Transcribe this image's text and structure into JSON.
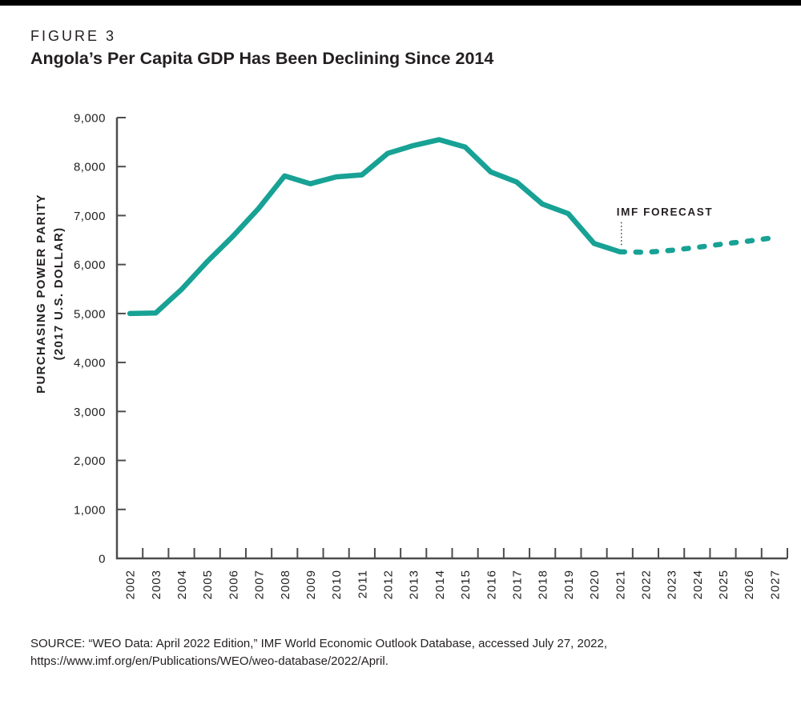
{
  "header": {
    "figure_label": "FIGURE 3",
    "title": "Angola’s Per Capita GDP Has Been Declining Since 2014"
  },
  "chart_data": {
    "type": "line",
    "title": "Angola’s Per Capita GDP Has Been Declining Since 2014",
    "ylabel_lines": [
      "PURCHASING POWER PARITY",
      "(2017 U.S. DOLLAR)"
    ],
    "xlabel": "",
    "xticklabels": [
      "2002",
      "2003",
      "2004",
      "2005",
      "2006",
      "2007",
      "2008",
      "2009",
      "2010",
      "2011",
      "2012",
      "2013",
      "2014",
      "2015",
      "2016",
      "2017",
      "2018",
      "2019",
      "2020",
      "2021",
      "2022",
      "2023",
      "2024",
      "2025",
      "2026",
      "2027"
    ],
    "yticklabels": [
      "0",
      "1,000",
      "2,000",
      "3,000",
      "4,000",
      "5,000",
      "6,000",
      "7,000",
      "8,000",
      "9,000"
    ],
    "ylim": [
      0,
      9000
    ],
    "ytick_step": 1000,
    "grid": false,
    "legend": "none",
    "series": [
      {
        "name": "historical",
        "style": "solid",
        "start_year": 2002,
        "values": [
          5000,
          5010,
          5490,
          6060,
          6580,
          7150,
          7810,
          7650,
          7790,
          7830,
          8270,
          8430,
          8550,
          8400,
          7890,
          7685,
          7235,
          7040,
          6430,
          6260
        ]
      },
      {
        "name": "imf-forecast",
        "style": "dashed",
        "start_year": 2021,
        "values": [
          6260,
          6250,
          6290,
          6350,
          6420,
          6480,
          6550
        ]
      }
    ],
    "annotation": {
      "text": "IMF FORECAST",
      "year": 2021
    },
    "colors": {
      "line": "#17A295",
      "axis": "#4D4D4F",
      "text": "#231F20"
    }
  },
  "footer": {
    "source_line1": "SOURCE: “WEO Data: April 2022 Edition,” IMF World Economic Outlook Database, accessed July 27, 2022,",
    "source_line2": "https://www.imf.org/en/Publications/WEO/weo-database/2022/April."
  }
}
